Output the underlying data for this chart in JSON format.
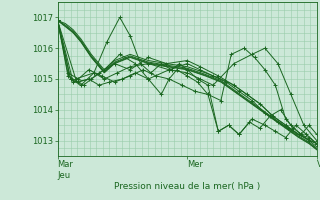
{
  "background_color": "#cce8d8",
  "plot_bg_color": "#cce8d8",
  "line_color": "#1a6620",
  "grid_color": "#99ccaa",
  "xlabel": "Pression niveau de la mer( hPa )",
  "ylim": [
    1012.5,
    1017.5
  ],
  "yticks": [
    1013,
    1014,
    1015,
    1016,
    1017
  ],
  "xtick_positions": [
    0.0,
    0.5,
    1.0
  ],
  "fine_vgrid_count": 40,
  "fine_hgrid_count": 20,
  "lines": [
    {
      "x": [
        0.0,
        0.03,
        0.06,
        0.09,
        0.13,
        0.18,
        0.22,
        0.28,
        0.35,
        0.42,
        0.5,
        0.57,
        0.63,
        0.68,
        0.73,
        0.78,
        0.83,
        0.88,
        0.93,
        0.97,
        1.0
      ],
      "y": [
        1016.9,
        1016.8,
        1016.6,
        1016.3,
        1015.8,
        1015.3,
        1015.6,
        1015.8,
        1015.6,
        1015.5,
        1015.4,
        1015.2,
        1015.0,
        1014.8,
        1014.5,
        1014.2,
        1013.8,
        1013.5,
        1013.2,
        1013.0,
        1012.8
      ],
      "markers": false
    },
    {
      "x": [
        0.0,
        0.03,
        0.06,
        0.09,
        0.13,
        0.18,
        0.22,
        0.28,
        0.35,
        0.42,
        0.5,
        0.57,
        0.63,
        0.68,
        0.73,
        0.78,
        0.83,
        0.88,
        0.93,
        0.97,
        1.0
      ],
      "y": [
        1016.9,
        1016.7,
        1016.5,
        1016.2,
        1015.7,
        1015.2,
        1015.5,
        1015.7,
        1015.5,
        1015.4,
        1015.3,
        1015.1,
        1014.9,
        1014.6,
        1014.3,
        1014.0,
        1013.7,
        1013.4,
        1013.1,
        1012.9,
        1012.7
      ],
      "markers": false
    },
    {
      "x": [
        0.0,
        0.03,
        0.06,
        0.09,
        0.13,
        0.18,
        0.22,
        0.28,
        0.35,
        0.42,
        0.5,
        0.57,
        0.63,
        0.68,
        0.73,
        0.78,
        0.83,
        0.88,
        0.93,
        0.97,
        1.0
      ],
      "y": [
        1016.9,
        1016.75,
        1016.55,
        1016.25,
        1015.75,
        1015.25,
        1015.55,
        1015.75,
        1015.55,
        1015.45,
        1015.35,
        1015.15,
        1014.95,
        1014.65,
        1014.35,
        1014.05,
        1013.75,
        1013.45,
        1013.15,
        1012.95,
        1012.75
      ],
      "markers": false
    },
    {
      "x": [
        0.0,
        0.03,
        0.06,
        0.09,
        0.13,
        0.18,
        0.22,
        0.28,
        0.35,
        0.42,
        0.5,
        0.57,
        0.63,
        0.68,
        0.73,
        0.78,
        0.83,
        0.88,
        0.93,
        0.97,
        1.0
      ],
      "y": [
        1016.9,
        1016.72,
        1016.52,
        1016.22,
        1015.72,
        1015.22,
        1015.52,
        1015.72,
        1015.52,
        1015.42,
        1015.32,
        1015.12,
        1014.92,
        1014.62,
        1014.32,
        1014.02,
        1013.72,
        1013.42,
        1013.12,
        1012.92,
        1012.72
      ],
      "markers": false
    },
    {
      "x": [
        0.0,
        0.04,
        0.08,
        0.12,
        0.16,
        0.2,
        0.25,
        0.3,
        0.35,
        0.43,
        0.5,
        0.55,
        0.6,
        0.68,
        0.75,
        0.8,
        0.85,
        0.9,
        0.95,
        1.0
      ],
      "y": [
        1016.9,
        1015.1,
        1014.9,
        1015.0,
        1014.8,
        1014.9,
        1015.0,
        1015.2,
        1015.0,
        1015.3,
        1015.2,
        1015.0,
        1014.8,
        1015.5,
        1015.8,
        1016.0,
        1015.5,
        1014.5,
        1013.5,
        1013.0
      ],
      "markers": true
    },
    {
      "x": [
        0.0,
        0.04,
        0.08,
        0.12,
        0.17,
        0.22,
        0.28,
        0.33,
        0.38,
        0.43,
        0.48,
        0.53,
        0.58,
        0.63,
        0.67,
        0.72,
        0.76,
        0.8,
        0.84,
        0.88,
        0.91,
        0.94,
        0.97,
        1.0
      ],
      "y": [
        1016.9,
        1015.2,
        1015.0,
        1015.3,
        1015.1,
        1014.9,
        1015.1,
        1015.3,
        1015.1,
        1015.0,
        1014.8,
        1014.6,
        1014.5,
        1014.3,
        1015.8,
        1016.0,
        1015.7,
        1015.3,
        1014.8,
        1013.7,
        1013.4,
        1013.2,
        1013.0,
        1012.9
      ],
      "markers": true
    },
    {
      "x": [
        0.0,
        0.05,
        0.09,
        0.14,
        0.18,
        0.23,
        0.28,
        0.35,
        0.43,
        0.5,
        0.55,
        0.6,
        0.65,
        0.7,
        0.75,
        0.8,
        0.85,
        0.89,
        0.93,
        0.97,
        1.0
      ],
      "y": [
        1016.9,
        1015.0,
        1014.8,
        1015.2,
        1015.0,
        1015.2,
        1015.4,
        1015.5,
        1015.3,
        1015.5,
        1015.3,
        1015.1,
        1014.9,
        1014.6,
        1014.3,
        1013.9,
        1013.6,
        1013.4,
        1013.2,
        1013.1,
        1012.9
      ],
      "markers": true
    },
    {
      "x": [
        0.0,
        0.05,
        0.1,
        0.16,
        0.22,
        0.28,
        0.35,
        0.42,
        0.5,
        0.55,
        0.62,
        0.68,
        0.73,
        0.78,
        0.83,
        0.88,
        0.93,
        1.0
      ],
      "y": [
        1016.9,
        1015.0,
        1014.8,
        1015.2,
        1015.5,
        1015.3,
        1015.7,
        1015.5,
        1015.6,
        1015.4,
        1015.1,
        1014.8,
        1014.5,
        1014.2,
        1013.8,
        1013.5,
        1013.2,
        1012.9
      ],
      "markers": true
    },
    {
      "x": [
        0.0,
        0.06,
        0.13,
        0.18,
        0.24,
        0.3,
        0.35,
        0.4,
        0.43,
        0.46,
        0.5,
        0.54,
        0.58,
        0.62,
        0.66,
        0.7,
        0.75,
        0.8,
        0.84,
        0.88,
        0.92,
        0.96,
        1.0
      ],
      "y": [
        1016.9,
        1014.9,
        1015.0,
        1015.3,
        1015.8,
        1015.5,
        1015.0,
        1014.5,
        1015.0,
        1015.3,
        1015.1,
        1014.9,
        1014.5,
        1013.3,
        1013.5,
        1013.2,
        1013.7,
        1013.5,
        1013.3,
        1013.1,
        1013.5,
        1013.2,
        1012.9
      ],
      "markers": true
    },
    {
      "x": [
        0.0,
        0.07,
        0.14,
        0.19,
        0.24,
        0.28,
        0.32,
        0.36,
        0.4,
        0.44,
        0.47,
        0.5,
        0.54,
        0.58,
        0.62,
        0.66,
        0.7,
        0.74,
        0.78,
        0.82,
        0.86,
        0.9,
        0.94,
        0.97,
        1.0
      ],
      "y": [
        1016.9,
        1015.0,
        1015.2,
        1016.2,
        1017.0,
        1016.4,
        1015.5,
        1015.2,
        1015.5,
        1015.3,
        1015.5,
        1015.3,
        1015.0,
        1014.8,
        1013.3,
        1013.5,
        1013.2,
        1013.6,
        1013.4,
        1013.8,
        1014.0,
        1013.5,
        1013.2,
        1013.5,
        1013.2
      ],
      "markers": true
    }
  ]
}
